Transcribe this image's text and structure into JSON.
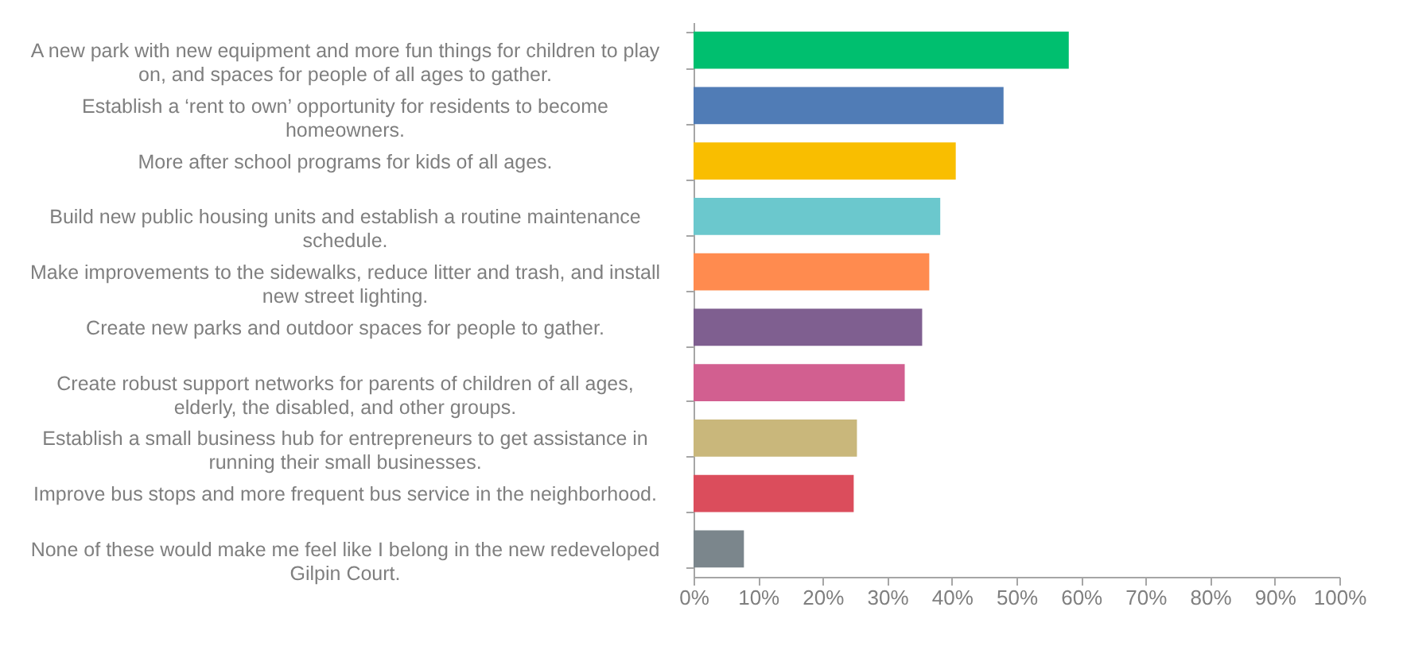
{
  "chart_data": {
    "type": "bar",
    "orientation": "horizontal",
    "categories": [
      "A new park with new equipment and more fun things for children to play on, and spaces for people of all ages to gather.",
      "Establish a ‘rent to own’ opportunity for residents to become homeowners.",
      "More after school programs for kids of all ages.",
      "Build new public housing units and establish a routine maintenance schedule.",
      "Make improvements to the sidewalks, reduce litter and trash, and install new street lighting.",
      "Create new parks and outdoor spaces for people to gather.",
      "Create robust support networks for parents of children of all ages, elderly, the disabled, and other groups.",
      "Establish a small business hub for entrepreneurs to get assistance in running their small businesses.",
      "Improve bus stops and more frequent bus service in the neighborhood.",
      "None of these would make me feel like I belong in the new redeveloped Gilpin Court."
    ],
    "values": [
      58.1,
      48,
      40.6,
      38.2,
      36.5,
      35.4,
      32.7,
      25.3,
      24.8,
      7.8
    ],
    "colors": [
      "#00bf6f",
      "#507cb6",
      "#f9be00",
      "#6bc8cd",
      "#ff8b4f",
      "#7f5f90",
      "#d25f90",
      "#c9b77b",
      "#db4d5c",
      "#7b868c"
    ],
    "xlim": [
      0,
      100
    ],
    "xticks": [
      {
        "value": 0,
        "label": "0%"
      },
      {
        "value": 10,
        "label": "10%"
      },
      {
        "value": 20,
        "label": "20%"
      },
      {
        "value": 30,
        "label": "30%"
      },
      {
        "value": 40,
        "label": "40%"
      },
      {
        "value": 50,
        "label": "50%"
      },
      {
        "value": 60,
        "label": "60%"
      },
      {
        "value": 70,
        "label": "70%"
      },
      {
        "value": 80,
        "label": "80%"
      },
      {
        "value": 90,
        "label": "90%"
      },
      {
        "value": 100,
        "label": "100%"
      }
    ],
    "grid": false,
    "legend": false
  }
}
